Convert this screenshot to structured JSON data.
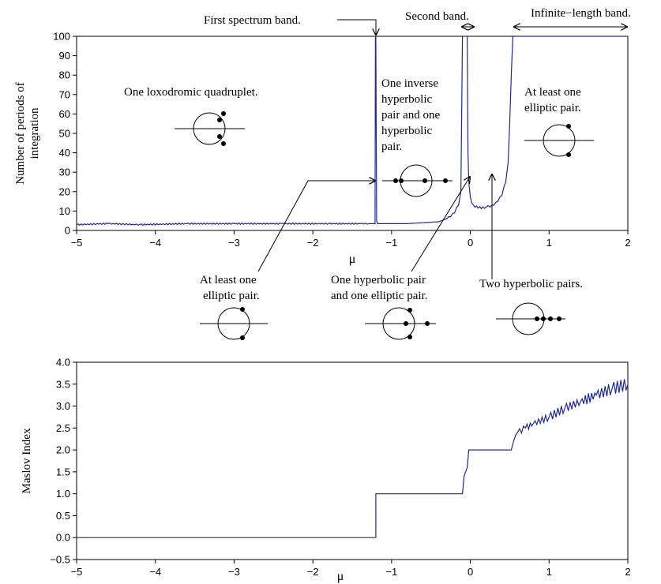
{
  "chart_data": [
    {
      "type": "line",
      "title": "",
      "xlabel": "μ",
      "ylabel": "Number of periods of integration",
      "ylabel_lines": [
        "Number of periods of",
        "integration"
      ],
      "xlim": [
        -5,
        2
      ],
      "ylim": [
        0,
        100
      ],
      "xticks": [
        -5,
        -4,
        -3,
        -2,
        -1,
        0,
        1,
        2
      ],
      "xtick_labels": [
        "−5",
        "−4",
        "−3",
        "−2",
        "−1",
        "0",
        "1",
        "2"
      ],
      "yticks": [
        0,
        10,
        20,
        30,
        40,
        50,
        60,
        70,
        80,
        90,
        100
      ],
      "ytick_labels": [
        "0",
        "10",
        "20",
        "30",
        "40",
        "50",
        "60",
        "70",
        "80",
        "90",
        "100"
      ],
      "series": [
        {
          "color": "#1f2a8c",
          "x": [
            -5.0,
            -4.6,
            -4.2,
            -3.6,
            -3.0,
            -2.4,
            -1.8,
            -1.4,
            -1.22,
            -1.21,
            -1.205,
            -1.2,
            -1.19,
            -1.18,
            -1.16,
            -1.0,
            -0.8,
            -0.6,
            -0.4,
            -0.3,
            -0.2,
            -0.15,
            -0.12,
            -0.1,
            -0.095,
            -0.09,
            -0.05,
            -0.04,
            -0.03,
            -0.02,
            0.0,
            0.02,
            0.06,
            0.1,
            0.2,
            0.3,
            0.35,
            0.4,
            0.45,
            0.48,
            0.5,
            0.52,
            0.54,
            0.55,
            1.0,
            1.5,
            2.0
          ],
          "y": [
            3,
            3.5,
            3,
            3.5,
            3.5,
            3.5,
            3.5,
            3.5,
            3.5,
            3.5,
            100,
            100,
            5,
            3.5,
            3.5,
            3.5,
            3.5,
            4,
            4.5,
            6,
            9,
            13,
            20,
            100,
            100,
            100,
            100,
            100,
            40,
            25,
            17,
            14,
            12,
            11.5,
            12,
            13,
            15,
            18,
            25,
            35,
            55,
            80,
            100,
            100,
            100,
            100,
            100
          ]
        }
      ],
      "annotations": [
        {
          "text": "First spectrum band."
        },
        {
          "text": "Second band."
        },
        {
          "text": "Infinite−length band."
        },
        {
          "text": "One loxodromic quadruplet."
        },
        {
          "text": "One inverse hyperbolic pair and one hyperbolic pair.",
          "lines": [
            "One inverse",
            "hyperbolic",
            "pair and one",
            "hyperbolic",
            "pair."
          ]
        },
        {
          "text": "At least one elliptic pair.",
          "lines": [
            "At least one",
            "elliptic pair."
          ]
        },
        {
          "text": "At least one elliptic pair.",
          "lines": [
            "At least one",
            "elliptic pair."
          ]
        },
        {
          "text": "One hyperbolic pair and one elliptic pair.",
          "lines": [
            "One hyperbolic pair",
            "and one elliptic pair."
          ]
        },
        {
          "text": "Two hyperbolic pairs."
        }
      ],
      "grid": false,
      "legend": "none"
    },
    {
      "type": "line",
      "title": "",
      "xlabel": "μ",
      "ylabel": "Maslov Index",
      "xlim": [
        -5,
        2
      ],
      "ylim": [
        -0.5,
        4.0
      ],
      "xticks": [
        -5,
        -4,
        -3,
        -2,
        -1,
        0,
        1,
        2
      ],
      "xtick_labels": [
        "−5",
        "−4",
        "−3",
        "−2",
        "−1",
        "0",
        "1",
        "2"
      ],
      "yticks": [
        -0.5,
        0.0,
        0.5,
        1.0,
        1.5,
        2.0,
        2.5,
        3.0,
        3.5,
        4.0
      ],
      "ytick_labels": [
        "−0.5",
        "0.0",
        "0.5",
        "1.0",
        "1.5",
        "2.0",
        "2.5",
        "3.0",
        "3.5",
        "4.0"
      ],
      "series": [
        {
          "color": "#1f2a8c",
          "x": [
            -5.0,
            -1.2,
            -1.2,
            -0.1,
            -0.08,
            -0.06,
            -0.04,
            -0.03,
            -0.02,
            0.0,
            0.52,
            0.55,
            0.6,
            0.7,
            0.8,
            1.0,
            1.2,
            1.4,
            1.6,
            1.8,
            2.0
          ],
          "y": [
            0.0,
            0.0,
            1.0,
            1.0,
            1.4,
            1.5,
            1.6,
            1.8,
            2.0,
            2.0,
            2.0,
            2.2,
            2.4,
            2.5,
            2.6,
            2.75,
            2.95,
            3.1,
            3.25,
            3.4,
            3.5
          ]
        }
      ],
      "grid": false,
      "legend": "none"
    }
  ]
}
